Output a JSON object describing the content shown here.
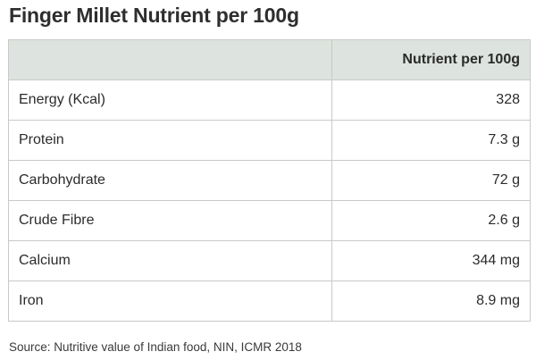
{
  "title": "Finger Millet Nutrient per 100g",
  "table": {
    "headers": [
      "",
      "Nutrient per 100g"
    ],
    "rows": [
      {
        "name": "Energy (Kcal)",
        "value": "328"
      },
      {
        "name": "Protein",
        "value": "7.3 g"
      },
      {
        "name": "Carbohydrate",
        "value": "72 g"
      },
      {
        "name": "Crude Fibre",
        "value": "2.6 g"
      },
      {
        "name": "Calcium",
        "value": "344 mg"
      },
      {
        "name": "Iron",
        "value": "8.9 mg"
      }
    ]
  },
  "source": "Source: Nutritive value of Indian food, NIN, ICMR 2018",
  "colors": {
    "header_bg": "#dde3de",
    "border": "#c9c9c9"
  }
}
